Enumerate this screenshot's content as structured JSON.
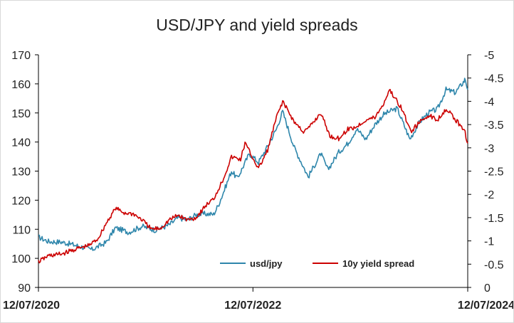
{
  "chart_data": {
    "type": "line",
    "title": "USD/JPY and yield spreads",
    "x_ticks": [
      "12/07/2020",
      "12/07/2022",
      "12/07/2024"
    ],
    "y_left": {
      "min": 90,
      "max": 170,
      "step": 10,
      "ticks": [
        "90",
        "100",
        "110",
        "120",
        "130",
        "140",
        "150",
        "160",
        "170"
      ]
    },
    "y_right": {
      "min": 0,
      "max": -5,
      "inverted": true,
      "ticks": [
        "0",
        "-0.5",
        "-1",
        "-1.5",
        "-2",
        "-2.5",
        "-3",
        "-3.5",
        "-4",
        "-4.5",
        "-5"
      ]
    },
    "gridlines": false,
    "legend_position": "bottom-center",
    "series": [
      {
        "name": "usd/jpy",
        "axis": "left",
        "color": "#2e86ab",
        "points": [
          [
            "2020-07-12",
            107.3
          ],
          [
            "2020-08-15",
            105.8
          ],
          [
            "2020-09-30",
            105.6
          ],
          [
            "2020-11-15",
            104.5
          ],
          [
            "2020-12-31",
            103.3
          ],
          [
            "2021-01-10",
            103.0
          ],
          [
            "2021-02-28",
            105.5
          ],
          [
            "2021-03-31",
            110.5
          ],
          [
            "2021-05-15",
            109.0
          ],
          [
            "2021-06-30",
            111.0
          ],
          [
            "2021-08-15",
            109.7
          ],
          [
            "2021-09-30",
            111.5
          ],
          [
            "2021-10-31",
            114.0
          ],
          [
            "2021-11-30",
            113.2
          ],
          [
            "2021-12-31",
            115.0
          ],
          [
            "2022-01-31",
            115.3
          ],
          [
            "2022-02-28",
            115.1
          ],
          [
            "2022-03-15",
            118.0
          ],
          [
            "2022-03-31",
            122.0
          ],
          [
            "2022-04-15",
            126.0
          ],
          [
            "2022-04-30",
            130.0
          ],
          [
            "2022-05-20",
            127.5
          ],
          [
            "2022-06-30",
            136.0
          ],
          [
            "2022-07-31",
            133.0
          ],
          [
            "2022-08-31",
            138.5
          ],
          [
            "2022-09-30",
            144.5
          ],
          [
            "2022-10-21",
            150.5
          ],
          [
            "2022-11-30",
            138.0
          ],
          [
            "2022-12-31",
            131.5
          ],
          [
            "2023-01-16",
            128.0
          ],
          [
            "2023-02-28",
            136.0
          ],
          [
            "2023-03-24",
            130.5
          ],
          [
            "2023-04-30",
            136.5
          ],
          [
            "2023-05-31",
            139.5
          ],
          [
            "2023-06-30",
            144.5
          ],
          [
            "2023-07-31",
            141.0
          ],
          [
            "2023-08-31",
            146.0
          ],
          [
            "2023-09-30",
            149.5
          ],
          [
            "2023-10-31",
            151.0
          ],
          [
            "2023-11-15",
            151.5
          ],
          [
            "2023-12-28",
            141.0
          ],
          [
            "2024-01-31",
            147.0
          ],
          [
            "2024-02-29",
            150.0
          ],
          [
            "2024-03-31",
            151.3
          ],
          [
            "2024-04-29",
            158.0
          ],
          [
            "2024-05-31",
            157.0
          ],
          [
            "2024-06-30",
            161.0
          ],
          [
            "2024-07-03",
            161.9
          ],
          [
            "2024-07-12",
            158.0
          ]
        ]
      },
      {
        "name": "10y yield spread",
        "axis": "right",
        "color": "#cc0000",
        "points": [
          [
            "2020-07-12",
            -0.55
          ],
          [
            "2020-08-15",
            -0.68
          ],
          [
            "2020-09-30",
            -0.72
          ],
          [
            "2020-11-15",
            -0.82
          ],
          [
            "2020-12-31",
            -0.9
          ],
          [
            "2021-01-31",
            -1.05
          ],
          [
            "2021-02-28",
            -1.38
          ],
          [
            "2021-03-31",
            -1.7
          ],
          [
            "2021-04-30",
            -1.6
          ],
          [
            "2021-05-31",
            -1.58
          ],
          [
            "2021-06-30",
            -1.45
          ],
          [
            "2021-07-31",
            -1.25
          ],
          [
            "2021-08-31",
            -1.27
          ],
          [
            "2021-09-30",
            -1.45
          ],
          [
            "2021-10-31",
            -1.55
          ],
          [
            "2021-11-30",
            -1.45
          ],
          [
            "2021-12-31",
            -1.5
          ],
          [
            "2022-01-31",
            -1.75
          ],
          [
            "2022-02-28",
            -1.9
          ],
          [
            "2022-03-31",
            -2.3
          ],
          [
            "2022-04-30",
            -2.8
          ],
          [
            "2022-05-31",
            -2.75
          ],
          [
            "2022-06-15",
            -3.1
          ],
          [
            "2022-07-31",
            -2.55
          ],
          [
            "2022-08-31",
            -2.95
          ],
          [
            "2022-09-30",
            -3.65
          ],
          [
            "2022-10-21",
            -4.0
          ],
          [
            "2022-11-30",
            -3.55
          ],
          [
            "2022-12-31",
            -3.35
          ],
          [
            "2023-01-15",
            -3.4
          ],
          [
            "2023-02-28",
            -3.75
          ],
          [
            "2023-03-31",
            -3.25
          ],
          [
            "2023-04-30",
            -3.2
          ],
          [
            "2023-05-31",
            -3.4
          ],
          [
            "2023-06-30",
            -3.45
          ],
          [
            "2023-07-31",
            -3.6
          ],
          [
            "2023-08-31",
            -3.65
          ],
          [
            "2023-09-30",
            -3.95
          ],
          [
            "2023-10-19",
            -4.25
          ],
          [
            "2023-11-30",
            -3.85
          ],
          [
            "2023-12-31",
            -3.35
          ],
          [
            "2024-01-31",
            -3.55
          ],
          [
            "2024-02-29",
            -3.7
          ],
          [
            "2024-03-31",
            -3.6
          ],
          [
            "2024-04-30",
            -3.85
          ],
          [
            "2024-05-31",
            -3.6
          ],
          [
            "2024-06-30",
            -3.4
          ],
          [
            "2024-07-12",
            -3.1
          ]
        ]
      }
    ]
  }
}
